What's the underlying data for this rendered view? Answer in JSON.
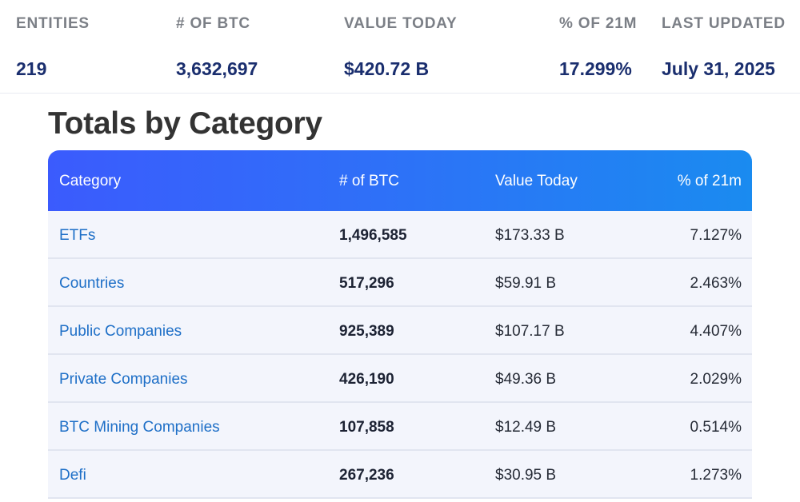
{
  "stats": {
    "entities": {
      "label": "ENTITIES",
      "value": "219"
    },
    "btc": {
      "label": "# OF BTC",
      "value": "3,632,697"
    },
    "value_today": {
      "label": "VALUE TODAY",
      "value": "$420.72 B"
    },
    "pct_21m": {
      "label": "% OF 21M",
      "value": "17.299%"
    },
    "last_updated": {
      "label": "LAST UPDATED",
      "value": "July 31, 2025"
    }
  },
  "section": {
    "title": "Totals by Category"
  },
  "table": {
    "headers": {
      "category": "Category",
      "btc": "# of BTC",
      "value": "Value Today",
      "pct": "% of 21m"
    },
    "rows": [
      {
        "category": "ETFs",
        "btc": "1,496,585",
        "value": "$173.33 B",
        "pct": "7.127%"
      },
      {
        "category": "Countries",
        "btc": "517,296",
        "value": "$59.91 B",
        "pct": "2.463%"
      },
      {
        "category": "Public Companies",
        "btc": "925,389",
        "value": "$107.17 B",
        "pct": "4.407%"
      },
      {
        "category": "Private Companies",
        "btc": "426,190",
        "value": "$49.36 B",
        "pct": "2.029%"
      },
      {
        "category": "BTC Mining Companies",
        "btc": "107,858",
        "value": "$12.49 B",
        "pct": "0.514%"
      },
      {
        "category": "Defi",
        "btc": "267,236",
        "value": "$30.95 B",
        "pct": "1.273%"
      }
    ]
  },
  "colors": {
    "header_gradient_start": "#3b5bfd",
    "header_gradient_end": "#1a8bf0",
    "link": "#1e6fc7",
    "stat_value": "#1a2e6e",
    "row_background": "#f3f5fc"
  }
}
